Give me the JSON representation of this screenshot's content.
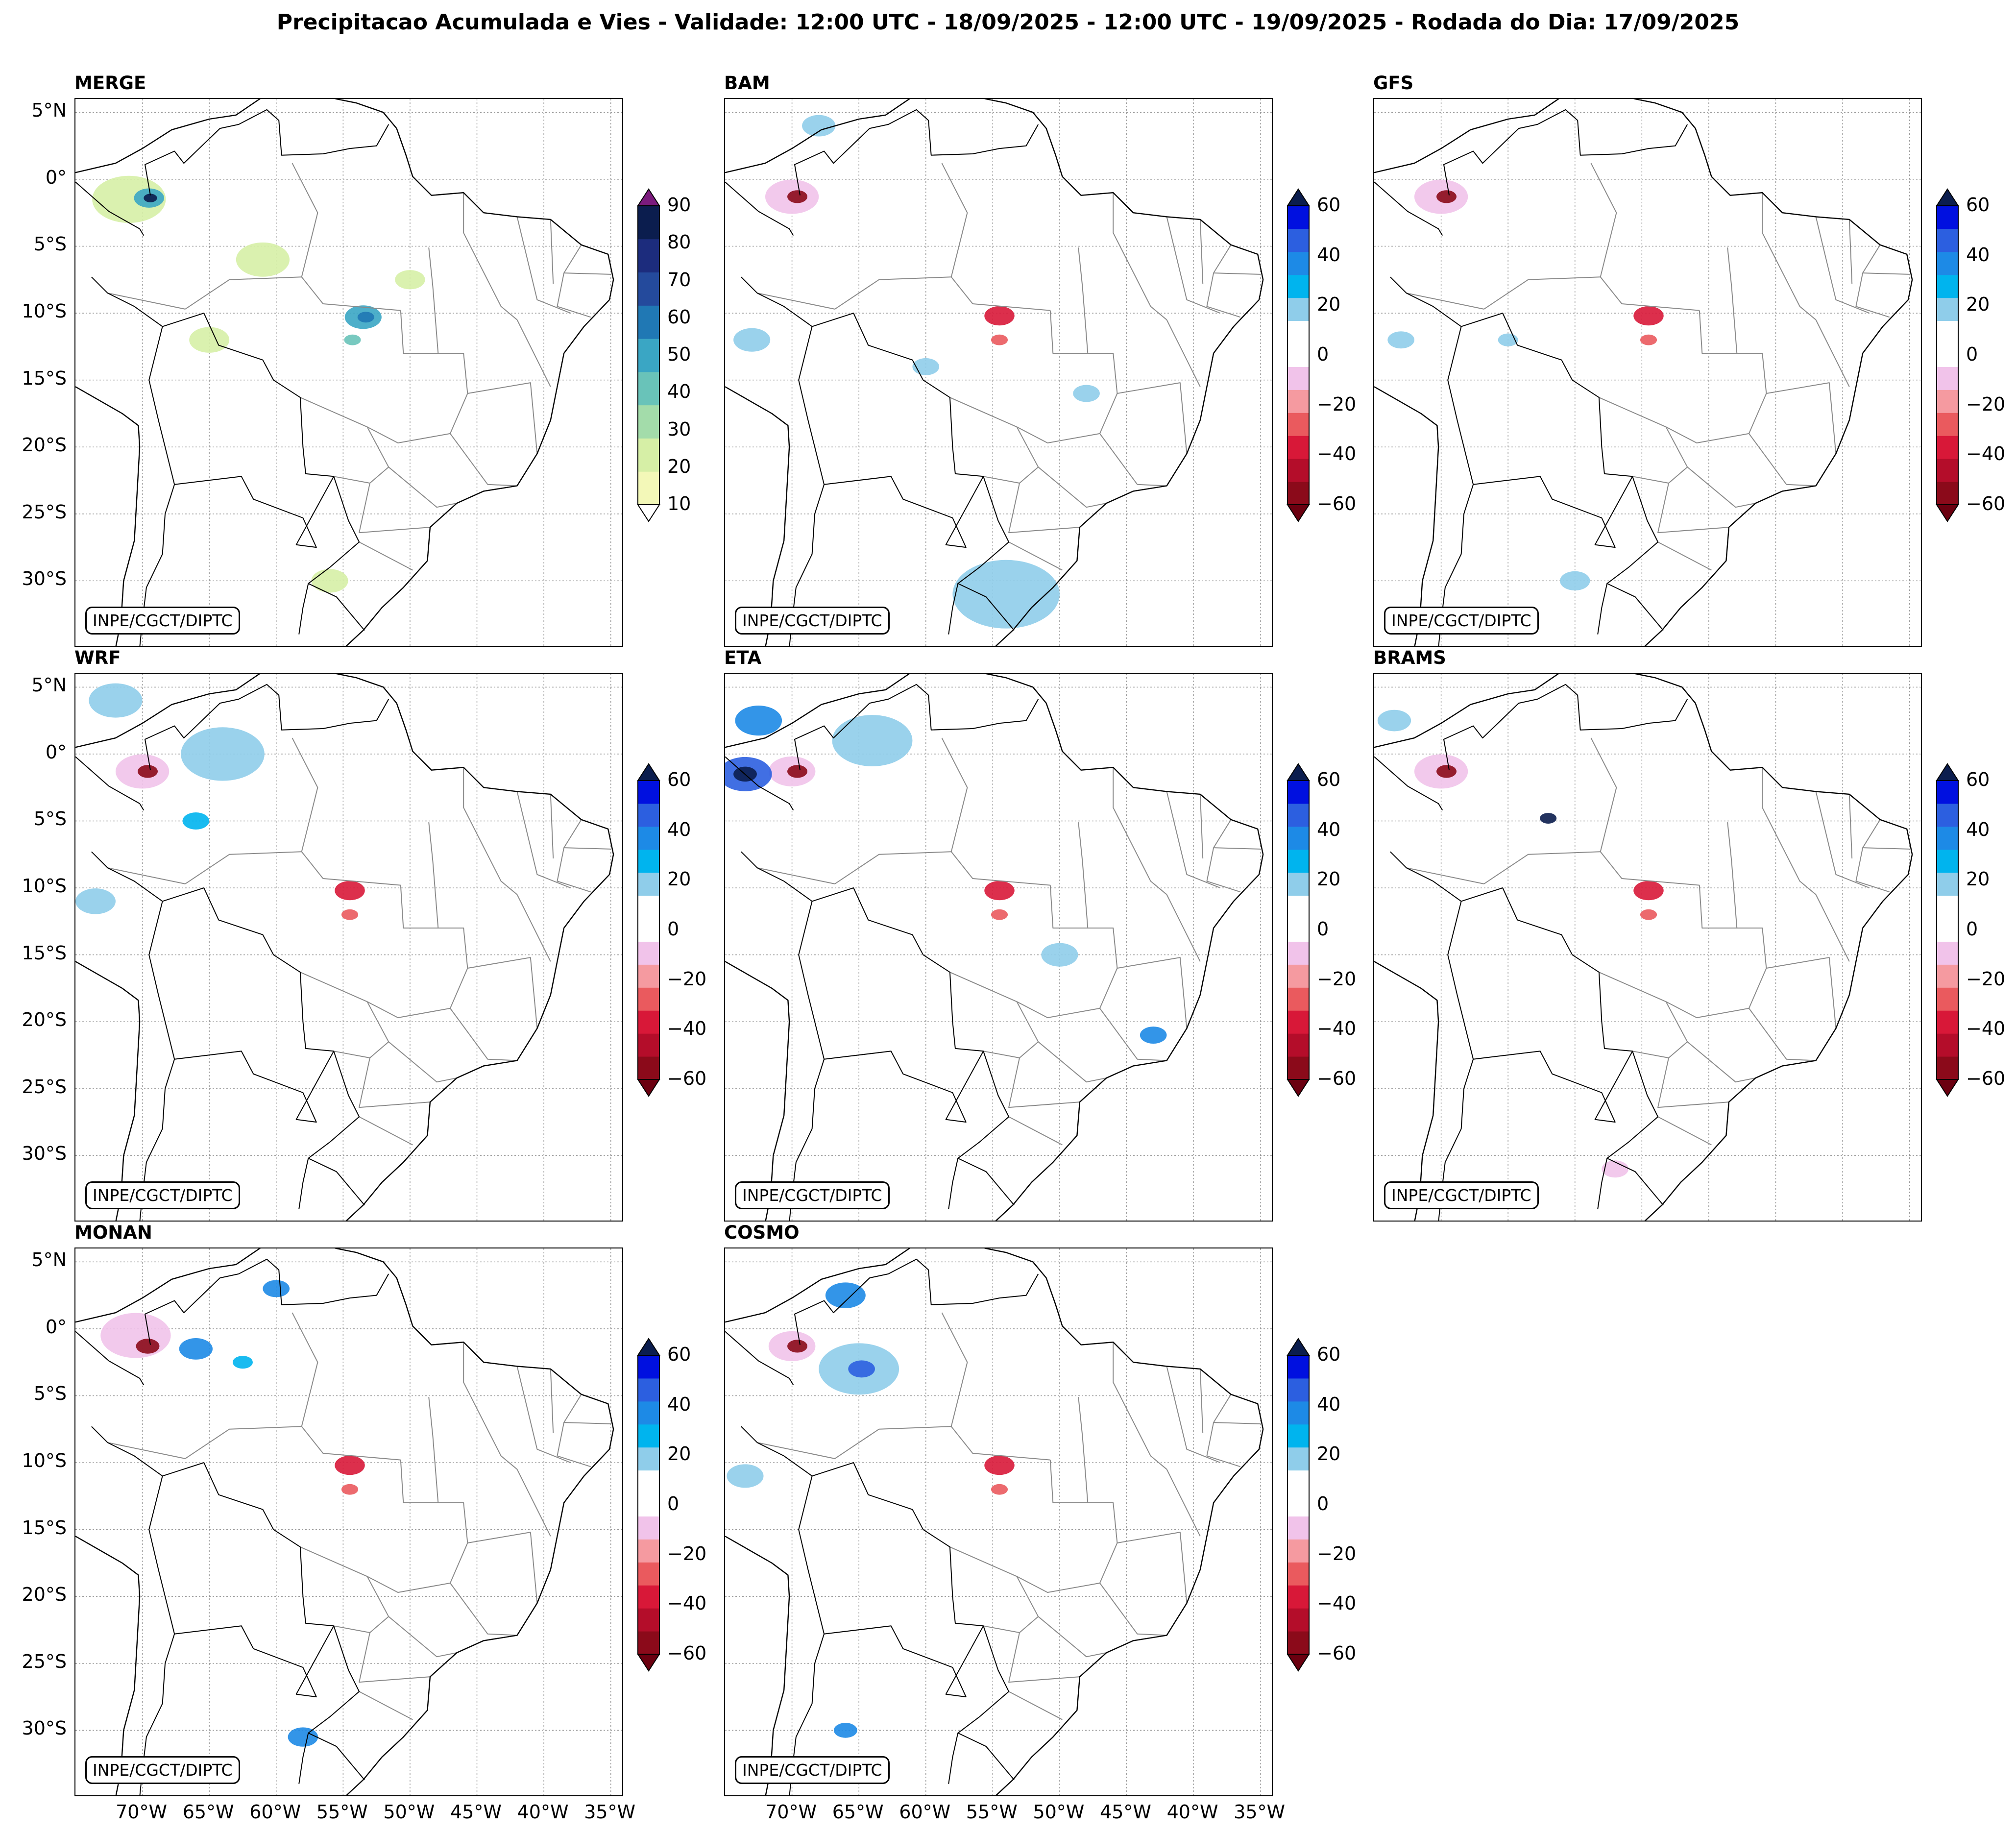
{
  "figure": {
    "title": "Precipitacao Acumulada e Vies - Validade: 12:00 UTC - 18/09/2025 - 12:00 UTC - 19/09/2025 - Rodada do Dia: 17/09/2025",
    "credit": "INPE/CGCT/DIPTC"
  },
  "axes": {
    "lat_labels": [
      "5°N",
      "0°",
      "5°S",
      "10°S",
      "15°S",
      "20°S",
      "25°S",
      "30°S"
    ],
    "lat_values": [
      5,
      0,
      -5,
      -10,
      -15,
      -20,
      -25,
      -30
    ],
    "lon_labels": [
      "70°W",
      "65°W",
      "60°W",
      "55°W",
      "50°W",
      "45°W",
      "40°W",
      "35°W"
    ],
    "lon_values": [
      -70,
      -65,
      -60,
      -55,
      -50,
      -45,
      -40,
      -35
    ],
    "extent": {
      "lon_min": -75,
      "lon_max": -34,
      "lat_min": -35,
      "lat_max": 6
    }
  },
  "colorbars": {
    "merge": {
      "ticks": [
        "90",
        "80",
        "70",
        "60",
        "50",
        "40",
        "30",
        "20",
        "10"
      ],
      "bands": [
        "#f3f8b8",
        "#d6efa6",
        "#a3dcaa",
        "#69c3b9",
        "#3aa6c4",
        "#2078b4",
        "#244a9c",
        "#1c2c7d",
        "#0b1d4e"
      ],
      "over": "#7b1b7d",
      "under": "#ffffff"
    },
    "bias": {
      "ticks": [
        "60",
        "40",
        "20",
        "0",
        "−20",
        "−40",
        "−60"
      ],
      "bands": [
        "#8b0a1a",
        "#b40d2a",
        "#d81838",
        "#ea5a5e",
        "#f59aa0",
        "#f1c3ea",
        "#ffffff",
        "#ffffff",
        "#8fcdea",
        "#00b4ee",
        "#1d8ae6",
        "#2c5fe0",
        "#0010e0"
      ],
      "over": "#0b1d4e",
      "under": "#6b0010"
    }
  },
  "panels": [
    {
      "id": "merge",
      "title": "MERGE",
      "colorbar": "merge",
      "blobs": [
        {
          "lon": -71,
          "lat": -1.5,
          "r": 2.2,
          "color": "#d6efa6"
        },
        {
          "lon": -69.5,
          "lat": -1.4,
          "r": 0.9,
          "color": "#3aa6c4"
        },
        {
          "lon": -69.4,
          "lat": -1.4,
          "r": 0.4,
          "color": "#0b1d4e"
        },
        {
          "lon": -61,
          "lat": -6,
          "r": 1.6,
          "color": "#d6efa6"
        },
        {
          "lon": -65,
          "lat": -12,
          "r": 1.2,
          "color": "#d6efa6"
        },
        {
          "lon": -53.5,
          "lat": -10.3,
          "r": 1.1,
          "color": "#3aa6c4"
        },
        {
          "lon": -53.3,
          "lat": -10.3,
          "r": 0.5,
          "color": "#2078b4"
        },
        {
          "lon": -54.3,
          "lat": -12,
          "r": 0.5,
          "color": "#69c3b9"
        },
        {
          "lon": -56,
          "lat": -30,
          "r": 1.1,
          "color": "#d6efa6"
        },
        {
          "lon": -50,
          "lat": -7.5,
          "r": 0.9,
          "color": "#d6efa6"
        }
      ]
    },
    {
      "id": "bam",
      "title": "BAM",
      "colorbar": "bias",
      "blobs": [
        {
          "lon": -70,
          "lat": -1.3,
          "r": 1.6,
          "color": "#f1c3ea"
        },
        {
          "lon": -69.6,
          "lat": -1.3,
          "r": 0.6,
          "color": "#8b0a1a"
        },
        {
          "lon": -54.5,
          "lat": -10.2,
          "r": 0.9,
          "color": "#d81838"
        },
        {
          "lon": -54.5,
          "lat": -12,
          "r": 0.5,
          "color": "#ea5a5e"
        },
        {
          "lon": -54,
          "lat": -31,
          "r": 3.2,
          "color": "#8fcdea"
        },
        {
          "lon": -73,
          "lat": -12,
          "r": 1.1,
          "color": "#8fcdea"
        },
        {
          "lon": -68,
          "lat": 4,
          "r": 1.0,
          "color": "#8fcdea"
        },
        {
          "lon": -48,
          "lat": -16,
          "r": 0.8,
          "color": "#8fcdea"
        },
        {
          "lon": -60,
          "lat": -14,
          "r": 0.8,
          "color": "#8fcdea"
        }
      ]
    },
    {
      "id": "gfs",
      "title": "GFS",
      "colorbar": "bias",
      "blobs": [
        {
          "lon": -70,
          "lat": -1.3,
          "r": 1.6,
          "color": "#f1c3ea"
        },
        {
          "lon": -69.6,
          "lat": -1.3,
          "r": 0.6,
          "color": "#8b0a1a"
        },
        {
          "lon": -54.5,
          "lat": -10.2,
          "r": 0.9,
          "color": "#d81838"
        },
        {
          "lon": -54.5,
          "lat": -12,
          "r": 0.5,
          "color": "#ea5a5e"
        },
        {
          "lon": -60,
          "lat": -30,
          "r": 0.9,
          "color": "#8fcdea"
        },
        {
          "lon": -73,
          "lat": -12,
          "r": 0.8,
          "color": "#8fcdea"
        },
        {
          "lon": -65,
          "lat": -12,
          "r": 0.6,
          "color": "#8fcdea"
        }
      ]
    },
    {
      "id": "wrf",
      "title": "WRF",
      "colorbar": "bias",
      "blobs": [
        {
          "lon": -70,
          "lat": -1.3,
          "r": 1.6,
          "color": "#f1c3ea"
        },
        {
          "lon": -69.6,
          "lat": -1.3,
          "r": 0.6,
          "color": "#8b0a1a"
        },
        {
          "lon": -54.5,
          "lat": -10.2,
          "r": 0.9,
          "color": "#d81838"
        },
        {
          "lon": -54.5,
          "lat": -12,
          "r": 0.5,
          "color": "#ea5a5e"
        },
        {
          "lon": -64,
          "lat": 0,
          "r": 2.5,
          "color": "#8fcdea"
        },
        {
          "lon": -72,
          "lat": 4,
          "r": 1.6,
          "color": "#8fcdea"
        },
        {
          "lon": -73.5,
          "lat": -11,
          "r": 1.2,
          "color": "#8fcdea"
        },
        {
          "lon": -66,
          "lat": -5,
          "r": 0.8,
          "color": "#00b4ee"
        }
      ]
    },
    {
      "id": "eta",
      "title": "ETA",
      "colorbar": "bias",
      "blobs": [
        {
          "lon": -70,
          "lat": -1.3,
          "r": 1.4,
          "color": "#f1c3ea"
        },
        {
          "lon": -69.6,
          "lat": -1.3,
          "r": 0.6,
          "color": "#8b0a1a"
        },
        {
          "lon": -54.5,
          "lat": -10.2,
          "r": 0.9,
          "color": "#d81838"
        },
        {
          "lon": -54.5,
          "lat": -12,
          "r": 0.5,
          "color": "#ea5a5e"
        },
        {
          "lon": -73.5,
          "lat": -1.5,
          "r": 1.6,
          "color": "#2c5fe0"
        },
        {
          "lon": -73.5,
          "lat": -1.5,
          "r": 0.7,
          "color": "#0b1d4e"
        },
        {
          "lon": -72.5,
          "lat": 2.5,
          "r": 1.4,
          "color": "#1d8ae6"
        },
        {
          "lon": -64,
          "lat": 1,
          "r": 2.4,
          "color": "#8fcdea"
        },
        {
          "lon": -50,
          "lat": -15,
          "r": 1.1,
          "color": "#8fcdea"
        },
        {
          "lon": -43,
          "lat": -21,
          "r": 0.8,
          "color": "#1d8ae6"
        }
      ]
    },
    {
      "id": "brams",
      "title": "BRAMS",
      "colorbar": "bias",
      "blobs": [
        {
          "lon": -70,
          "lat": -1.3,
          "r": 1.6,
          "color": "#f1c3ea"
        },
        {
          "lon": -69.6,
          "lat": -1.3,
          "r": 0.6,
          "color": "#8b0a1a"
        },
        {
          "lon": -54.5,
          "lat": -10.2,
          "r": 0.9,
          "color": "#d81838"
        },
        {
          "lon": -54.5,
          "lat": -12,
          "r": 0.5,
          "color": "#ea5a5e"
        },
        {
          "lon": -62,
          "lat": -4.8,
          "r": 0.5,
          "color": "#0b1d4e"
        },
        {
          "lon": -73.5,
          "lat": 2.5,
          "r": 1.0,
          "color": "#8fcdea"
        },
        {
          "lon": -57,
          "lat": -31,
          "r": 0.8,
          "color": "#f1c3ea"
        }
      ]
    },
    {
      "id": "monan",
      "title": "MONAN",
      "colorbar": "bias",
      "blobs": [
        {
          "lon": -70.5,
          "lat": -0.5,
          "r": 2.1,
          "color": "#f1c3ea"
        },
        {
          "lon": -69.6,
          "lat": -1.3,
          "r": 0.7,
          "color": "#8b0a1a"
        },
        {
          "lon": -54.5,
          "lat": -10.2,
          "r": 0.9,
          "color": "#d81838"
        },
        {
          "lon": -54.5,
          "lat": -12,
          "r": 0.5,
          "color": "#ea5a5e"
        },
        {
          "lon": -66,
          "lat": -1.5,
          "r": 1.0,
          "color": "#1d8ae6"
        },
        {
          "lon": -60,
          "lat": 3,
          "r": 0.8,
          "color": "#1d8ae6"
        },
        {
          "lon": -58,
          "lat": -30.5,
          "r": 0.9,
          "color": "#1d8ae6"
        },
        {
          "lon": -62.5,
          "lat": -2.5,
          "r": 0.6,
          "color": "#00b4ee"
        }
      ]
    },
    {
      "id": "cosmo",
      "title": "COSMO",
      "colorbar": "bias",
      "blobs": [
        {
          "lon": -70,
          "lat": -1.3,
          "r": 1.4,
          "color": "#f1c3ea"
        },
        {
          "lon": -69.6,
          "lat": -1.3,
          "r": 0.6,
          "color": "#8b0a1a"
        },
        {
          "lon": -54.5,
          "lat": -10.2,
          "r": 0.9,
          "color": "#d81838"
        },
        {
          "lon": -54.5,
          "lat": -12,
          "r": 0.5,
          "color": "#ea5a5e"
        },
        {
          "lon": -65,
          "lat": -3,
          "r": 2.4,
          "color": "#8fcdea"
        },
        {
          "lon": -64.8,
          "lat": -3,
          "r": 0.8,
          "color": "#2c5fe0"
        },
        {
          "lon": -66,
          "lat": 2.5,
          "r": 1.2,
          "color": "#1d8ae6"
        },
        {
          "lon": -73.5,
          "lat": -11,
          "r": 1.1,
          "color": "#8fcdea"
        },
        {
          "lon": -66,
          "lat": -30,
          "r": 0.7,
          "color": "#1d8ae6"
        }
      ]
    }
  ]
}
